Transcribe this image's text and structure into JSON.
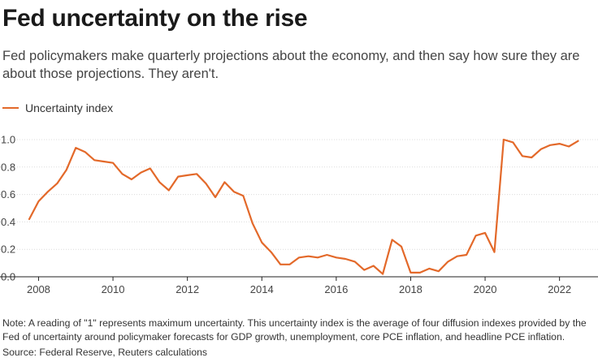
{
  "header": {
    "title": "Fed uncertainty on the rise",
    "subtitle": "Fed policymakers make quarterly projections about the economy, and then say how sure they are about those projections. They aren't."
  },
  "footer": {
    "note": "Note: A reading of \"1\" represents maximum uncertainty. This uncertainty index is the average of four diffusion indexes provided by the Fed of uncertainty around policymaker forecasts for GDP growth, unemployment, core PCE inflation, and headline PCE inflation.",
    "source": "Source: Federal Reserve, Reuters calculations"
  },
  "colors": {
    "series": "#e3692a"
  },
  "chart_data": {
    "type": "line",
    "title": "Fed uncertainty on the rise",
    "xlabel": "",
    "ylabel": "",
    "xlim": [
      2007.75,
      2022.75
    ],
    "ylim": [
      0,
      1.0
    ],
    "x_ticks": [
      2008,
      2010,
      2012,
      2014,
      2016,
      2018,
      2020,
      2022
    ],
    "y_ticks": [
      0.0,
      0.2,
      0.4,
      0.6,
      0.8,
      1.0
    ],
    "y_tick_labels": [
      "0.0",
      "0.2",
      "0.4",
      "0.6",
      "0.8",
      "1.0"
    ],
    "grid": true,
    "legend_position": "top-left",
    "series": [
      {
        "name": "Uncertainty index",
        "x": [
          2007.75,
          2008.0,
          2008.25,
          2008.5,
          2008.75,
          2009.0,
          2009.25,
          2009.5,
          2009.75,
          2010.0,
          2010.25,
          2010.5,
          2010.75,
          2011.0,
          2011.25,
          2011.5,
          2011.75,
          2012.0,
          2012.25,
          2012.5,
          2012.75,
          2013.0,
          2013.25,
          2013.5,
          2013.75,
          2014.0,
          2014.25,
          2014.5,
          2014.75,
          2015.0,
          2015.25,
          2015.5,
          2015.75,
          2016.0,
          2016.25,
          2016.5,
          2016.75,
          2017.0,
          2017.25,
          2017.5,
          2017.75,
          2018.0,
          2018.25,
          2018.5,
          2018.75,
          2019.0,
          2019.25,
          2019.5,
          2019.75,
          2020.0,
          2020.25,
          2020.5,
          2020.75,
          2021.0,
          2021.25,
          2021.5,
          2021.75,
          2022.0,
          2022.25,
          2022.5
        ],
        "values": [
          0.42,
          0.55,
          0.62,
          0.68,
          0.78,
          0.94,
          0.91,
          0.85,
          0.84,
          0.83,
          0.75,
          0.71,
          0.76,
          0.79,
          0.69,
          0.63,
          0.73,
          0.74,
          0.75,
          0.68,
          0.58,
          0.69,
          0.62,
          0.59,
          0.39,
          0.25,
          0.18,
          0.09,
          0.09,
          0.14,
          0.15,
          0.14,
          0.16,
          0.14,
          0.13,
          0.11,
          0.05,
          0.08,
          0.02,
          0.27,
          0.22,
          0.03,
          0.03,
          0.06,
          0.04,
          0.11,
          0.15,
          0.16,
          0.3,
          0.32,
          0.18,
          1.0,
          0.98,
          0.88,
          0.87,
          0.93,
          0.96,
          0.97,
          0.95,
          0.99
        ]
      }
    ]
  }
}
